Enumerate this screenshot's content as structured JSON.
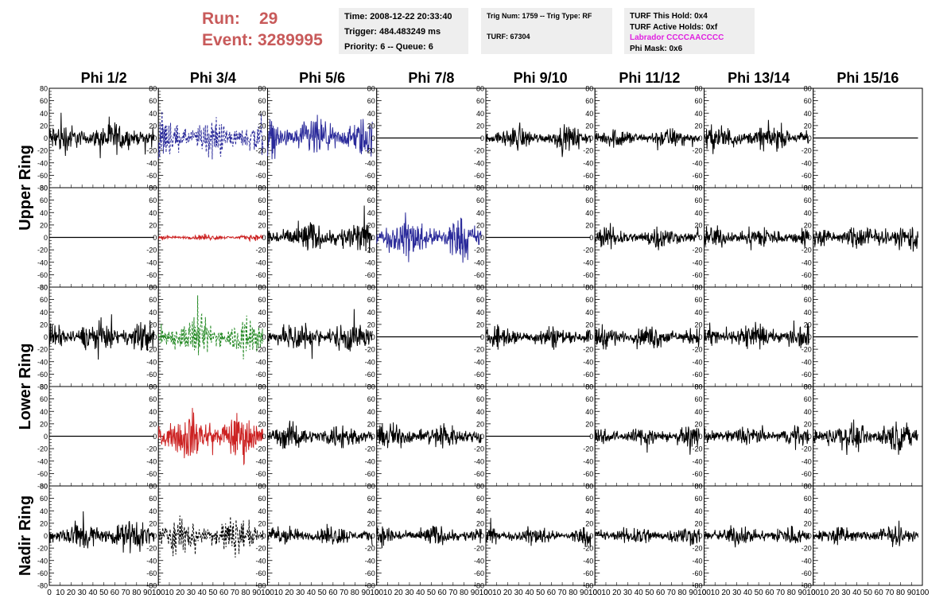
{
  "header": {
    "run_label": "Run:",
    "run_value": "29",
    "event_label": "Event:",
    "event_value": "3289995",
    "info1": [
      "Time: 2008-12-22 20:33:40",
      "Trigger: 484.483249 ms",
      "Priority: 6 -- Queue: 6"
    ],
    "info2": [
      "Trig Num: 1759 -- Trig Type: RF",
      "",
      "TURF: 67304"
    ],
    "info3": [
      "TURF This Hold: 0x4",
      "TURF Active Holds: 0xf",
      "Labrador CCCCAACCCC",
      "Phi Mask: 0x6"
    ]
  },
  "chart_data": {
    "type": "line",
    "columns": [
      "Phi 1/2",
      "Phi 3/4",
      "Phi 5/6",
      "Phi 7/8",
      "Phi 9/10",
      "Phi 11/12",
      "Phi 13/14",
      "Phi 15/16"
    ],
    "ring_labels": [
      "Upper Ring",
      "Lower Ring",
      "Nadir Ring"
    ],
    "x_ticks": [
      "0",
      "10",
      "20",
      "30",
      "40",
      "50",
      "60",
      "70",
      "80",
      "90",
      "100"
    ],
    "y_ticks": [
      "80",
      "60",
      "40",
      "20",
      "0",
      "-20",
      "-40",
      "-60",
      "-80"
    ],
    "xlim": [
      0,
      100
    ],
    "ylim": [
      -80,
      80
    ],
    "colors": {
      "black": "#000000",
      "blue": "#2a2a9a",
      "red": "#cc2222",
      "green": "#228822"
    },
    "waveforms": [
      [
        {
          "amp": 22,
          "color": "black"
        },
        {
          "amp": 28,
          "color": "blue",
          "dashed": true
        },
        {
          "amp": 28,
          "color": "blue"
        },
        {
          "amp": 0,
          "color": "black"
        },
        {
          "amp": 16,
          "color": "black"
        },
        {
          "amp": 14,
          "color": "black"
        },
        {
          "amp": 18,
          "color": "black"
        },
        {
          "amp": 0,
          "color": "black"
        }
      ],
      [
        {
          "amp": 0,
          "color": "black"
        },
        {
          "amp": 4,
          "color": "red"
        },
        {
          "amp": 22,
          "color": "black"
        },
        {
          "amp": 28,
          "color": "blue"
        },
        {
          "amp": 0,
          "color": "black"
        },
        {
          "amp": 16,
          "color": "black"
        },
        {
          "amp": 16,
          "color": "black"
        },
        {
          "amp": 18,
          "color": "black"
        }
      ],
      [
        {
          "amp": 22,
          "color": "black"
        },
        {
          "amp": 28,
          "color": "green",
          "dashed": true
        },
        {
          "amp": 22,
          "color": "black"
        },
        {
          "amp": 0,
          "color": "black"
        },
        {
          "amp": 16,
          "color": "black"
        },
        {
          "amp": 16,
          "color": "black"
        },
        {
          "amp": 18,
          "color": "black"
        },
        {
          "amp": 0,
          "color": "black"
        }
      ],
      [
        {
          "amp": 0,
          "color": "black"
        },
        {
          "amp": 32,
          "color": "red"
        },
        {
          "amp": 18,
          "color": "black"
        },
        {
          "amp": 18,
          "color": "black"
        },
        {
          "amp": 0,
          "color": "black"
        },
        {
          "amp": 14,
          "color": "black"
        },
        {
          "amp": 14,
          "color": "black"
        },
        {
          "amp": 20,
          "color": "black"
        }
      ],
      [
        {
          "amp": 22,
          "color": "black"
        },
        {
          "amp": 26,
          "color": "black",
          "dashed": true
        },
        {
          "amp": 14,
          "color": "black"
        },
        {
          "amp": 14,
          "color": "black"
        },
        {
          "amp": 12,
          "color": "black"
        },
        {
          "amp": 14,
          "color": "black"
        },
        {
          "amp": 14,
          "color": "black"
        },
        {
          "amp": 14,
          "color": "black"
        }
      ]
    ]
  }
}
